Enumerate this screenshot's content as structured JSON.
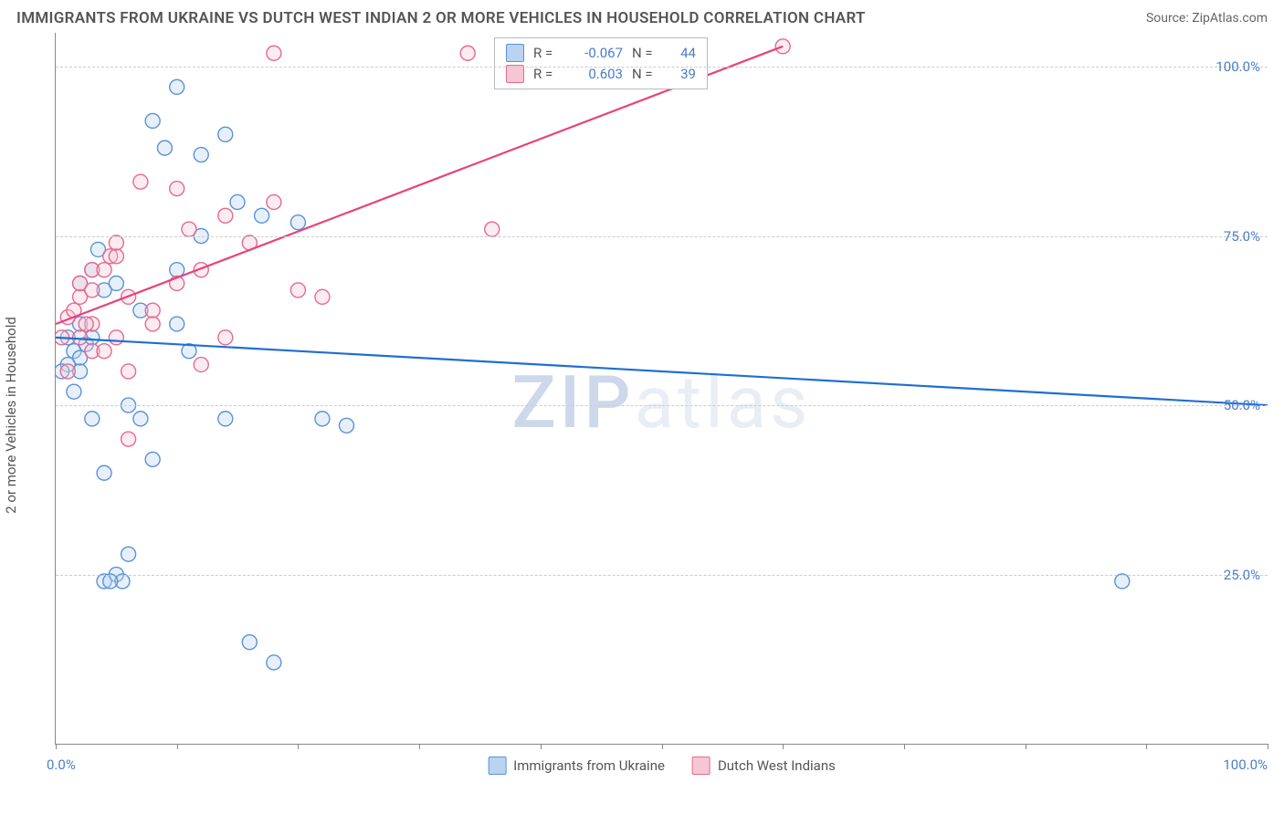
{
  "title": "IMMIGRANTS FROM UKRAINE VS DUTCH WEST INDIAN 2 OR MORE VEHICLES IN HOUSEHOLD CORRELATION CHART",
  "source_label": "Source:",
  "source_value": "ZipAtlas.com",
  "ylabel": "2 or more Vehicles in Household",
  "watermark_a": "ZIP",
  "watermark_b": "atlas",
  "chart": {
    "type": "scatter",
    "xlim": [
      0,
      100
    ],
    "ylim": [
      0,
      105
    ],
    "y_gridlines": [
      25,
      50,
      75,
      100
    ],
    "y_tick_labels": [
      "25.0%",
      "50.0%",
      "75.0%",
      "100.0%"
    ],
    "x_ticks": [
      0,
      10,
      20,
      30,
      40,
      50,
      60,
      70,
      80,
      90,
      100
    ],
    "x_axis_labels": [
      {
        "pos": 0,
        "text": "0.0%"
      },
      {
        "pos": 100,
        "text": "100.0%"
      }
    ],
    "background_color": "#ffffff",
    "grid_color": "#cccccc",
    "marker_radius": 8,
    "series": [
      {
        "key": "ukraine",
        "bottom_legend": "Immigrants from Ukraine",
        "color_fill": "#b9d3f0",
        "color_stroke": "#5a93d6",
        "line_color": "#1f6fd1",
        "R": "-0.067",
        "N": "44",
        "trend": {
          "x1": 0,
          "y1": 60,
          "x2": 100,
          "y2": 50
        },
        "points": [
          [
            1,
            60
          ],
          [
            1.5,
            58
          ],
          [
            2,
            62
          ],
          [
            2,
            57
          ],
          [
            2.5,
            59
          ],
          [
            3,
            60
          ],
          [
            3,
            70
          ],
          [
            3.5,
            73
          ],
          [
            4,
            67
          ],
          [
            2,
            55
          ],
          [
            1.5,
            52
          ],
          [
            1,
            56
          ],
          [
            0.5,
            55
          ],
          [
            4,
            24
          ],
          [
            5,
            25
          ],
          [
            5.5,
            24
          ],
          [
            4.5,
            24
          ],
          [
            6,
            28
          ],
          [
            7,
            64
          ],
          [
            8,
            92
          ],
          [
            9,
            88
          ],
          [
            10,
            97
          ],
          [
            12,
            87
          ],
          [
            14,
            90
          ],
          [
            15,
            80
          ],
          [
            12,
            75
          ],
          [
            10,
            70
          ],
          [
            6,
            50
          ],
          [
            7,
            48
          ],
          [
            14,
            48
          ],
          [
            22,
            48
          ],
          [
            24,
            47
          ],
          [
            8,
            42
          ],
          [
            4,
            40
          ],
          [
            3,
            48
          ],
          [
            16,
            15
          ],
          [
            18,
            12
          ],
          [
            88,
            24
          ],
          [
            2,
            68
          ],
          [
            5,
            68
          ],
          [
            10,
            62
          ],
          [
            11,
            58
          ],
          [
            17,
            78
          ],
          [
            20,
            77
          ]
        ]
      },
      {
        "key": "dutch",
        "bottom_legend": "Dutch West Indians",
        "color_fill": "#f6c6d4",
        "color_stroke": "#e56a8e",
        "line_color": "#e8427a",
        "R": "0.603",
        "N": "39",
        "trend": {
          "x1": 0,
          "y1": 62,
          "x2": 60,
          "y2": 103
        },
        "points": [
          [
            1,
            63
          ],
          [
            2,
            66
          ],
          [
            2,
            68
          ],
          [
            3,
            67
          ],
          [
            3,
            70
          ],
          [
            4,
            70
          ],
          [
            4.5,
            72
          ],
          [
            5,
            72
          ],
          [
            5,
            74
          ],
          [
            1,
            55
          ],
          [
            2,
            60
          ],
          [
            0.5,
            60
          ],
          [
            3,
            62
          ],
          [
            6,
            55
          ],
          [
            8,
            64
          ],
          [
            10,
            68
          ],
          [
            11,
            76
          ],
          [
            12,
            70
          ],
          [
            7,
            83
          ],
          [
            10,
            82
          ],
          [
            14,
            78
          ],
          [
            18,
            80
          ],
          [
            16,
            74
          ],
          [
            20,
            67
          ],
          [
            22,
            66
          ],
          [
            6,
            45
          ],
          [
            12,
            56
          ],
          [
            14,
            60
          ],
          [
            36,
            76
          ],
          [
            34,
            102
          ],
          [
            18,
            102
          ],
          [
            60,
            103
          ],
          [
            3,
            58
          ],
          [
            4,
            58
          ],
          [
            2.5,
            62
          ],
          [
            1.5,
            64
          ],
          [
            6,
            66
          ],
          [
            8,
            62
          ],
          [
            5,
            60
          ]
        ]
      }
    ],
    "legend_top": {
      "r_label": "R =",
      "n_label": "N ="
    }
  }
}
